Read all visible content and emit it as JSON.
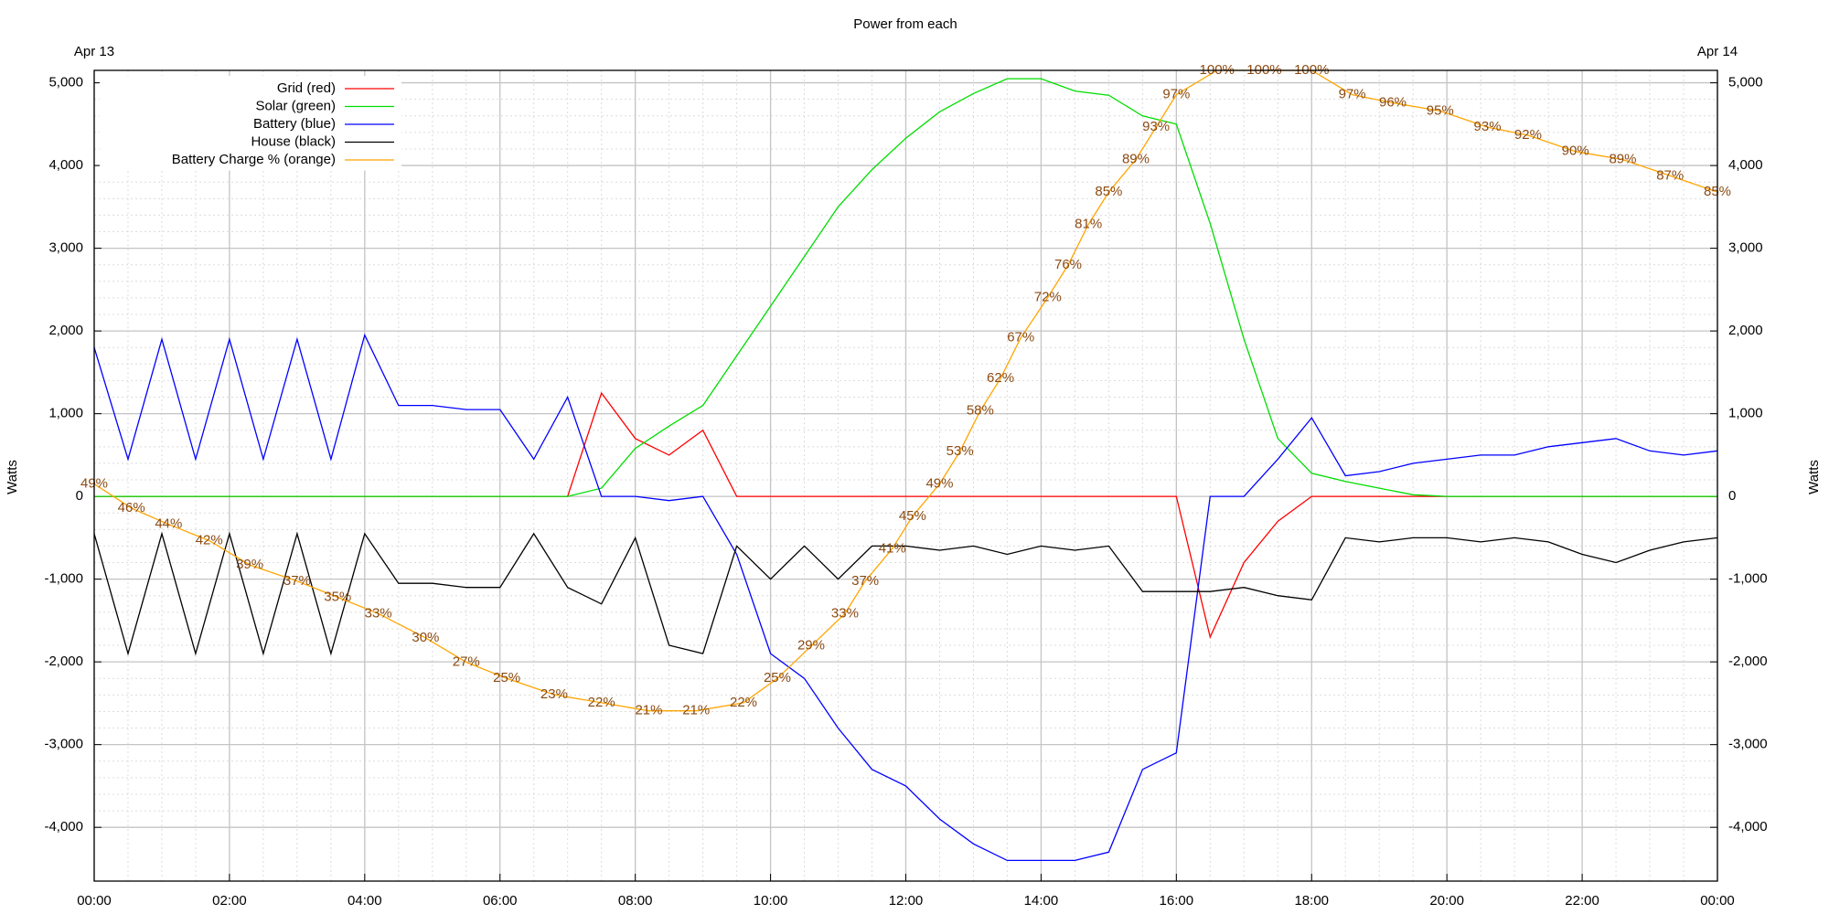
{
  "chart_data": {
    "type": "line",
    "title": "Power from each",
    "start_date": "Apr 13",
    "end_date": "Apr 14",
    "ylabel": "Watts",
    "ylabel_right": "Watts",
    "grid": true,
    "legend": "upper left",
    "xlim": [
      0,
      24
    ],
    "xticks": [
      {
        "value": 0,
        "label": "00:00"
      },
      {
        "value": 2,
        "label": "02:00"
      },
      {
        "value": 4,
        "label": "04:00"
      },
      {
        "value": 6,
        "label": "06:00"
      },
      {
        "value": 8,
        "label": "08:00"
      },
      {
        "value": 10,
        "label": "10:00"
      },
      {
        "value": 12,
        "label": "12:00"
      },
      {
        "value": 14,
        "label": "14:00"
      },
      {
        "value": 16,
        "label": "16:00"
      },
      {
        "value": 18,
        "label": "18:00"
      },
      {
        "value": 20,
        "label": "20:00"
      },
      {
        "value": 22,
        "label": "22:00"
      },
      {
        "value": 24,
        "label": "00:00"
      }
    ],
    "ylim": [
      -4650,
      5150
    ],
    "yticks": [
      {
        "value": 5000,
        "label": "5,000"
      },
      {
        "value": 4000,
        "label": "4,000"
      },
      {
        "value": 3000,
        "label": "3,000"
      },
      {
        "value": 2000,
        "label": "2,000"
      },
      {
        "value": 1000,
        "label": "1,000"
      },
      0,
      {
        "value": -1000,
        "label": "-1,000"
      },
      {
        "value": -2000,
        "label": "-2,000"
      },
      {
        "value": -3000,
        "label": "-3,000"
      },
      {
        "value": -4000,
        "label": "-4,000"
      }
    ],
    "y2lim": [
      0,
      100
    ],
    "x": [
      0,
      0.5,
      1,
      1.5,
      2,
      2.5,
      3,
      3.5,
      4,
      4.5,
      5,
      5.5,
      6,
      6.5,
      7,
      7.5,
      8,
      8.5,
      9,
      9.5,
      10,
      10.5,
      11,
      11.5,
      12,
      12.5,
      13,
      13.5,
      14,
      14.5,
      15,
      15.5,
      16,
      16.5,
      17,
      17.5,
      18,
      18.5,
      19,
      19.5,
      20,
      20.5,
      21,
      21.5,
      22,
      22.5,
      23,
      23.5,
      24
    ],
    "series": [
      {
        "name": "Grid (red)",
        "color": "#ff0000",
        "values": [
          0,
          0,
          0,
          0,
          0,
          0,
          0,
          0,
          0,
          0,
          0,
          0,
          0,
          0,
          0,
          1250,
          700,
          500,
          800,
          0,
          0,
          0,
          0,
          0,
          0,
          0,
          0,
          0,
          0,
          0,
          0,
          0,
          0,
          -1700,
          -800,
          -300,
          0,
          0,
          0,
          0,
          0,
          0,
          0,
          0,
          0,
          0,
          0,
          0,
          0
        ]
      },
      {
        "name": "Solar (green)",
        "color": "#00dd00",
        "values": [
          0,
          0,
          0,
          0,
          0,
          0,
          0,
          0,
          0,
          0,
          0,
          0,
          0,
          0,
          0,
          100,
          580,
          850,
          1100,
          1700,
          2300,
          2900,
          3500,
          3950,
          4330,
          4650,
          4870,
          5050,
          5050,
          4900,
          4850,
          4600,
          4500,
          3300,
          1900,
          700,
          280,
          180,
          100,
          20,
          0,
          0,
          0,
          0,
          0,
          0,
          0,
          0,
          0
        ]
      },
      {
        "name": "Battery (blue)",
        "color": "#0000ff",
        "values": [
          1800,
          450,
          1900,
          450,
          1900,
          450,
          1900,
          450,
          1950,
          1100,
          1100,
          1050,
          1050,
          450,
          1200,
          0,
          0,
          -50,
          0,
          -700,
          -1900,
          -2200,
          -2800,
          -3300,
          -3500,
          -3900,
          -4200,
          -4400,
          -4400,
          -4400,
          -4300,
          -3300,
          -3100,
          0,
          0,
          450,
          950,
          250,
          300,
          400,
          450,
          500,
          500,
          600,
          650,
          700,
          550,
          500,
          550
        ]
      },
      {
        "name": "House (black)",
        "color": "#000000",
        "values": [
          -450,
          -1900,
          -450,
          -1900,
          -450,
          -1900,
          -450,
          -1900,
          -450,
          -1050,
          -1050,
          -1100,
          -1100,
          -450,
          -1100,
          -1300,
          -500,
          -1800,
          -1900,
          -600,
          -1000,
          -600,
          -1000,
          -600,
          -600,
          -650,
          -600,
          -700,
          -600,
          -650,
          -600,
          -1150,
          -1150,
          -1150,
          -1100,
          -1200,
          -1250,
          -500,
          -550,
          -500,
          -500,
          -550,
          -500,
          -550,
          -700,
          -800,
          -650,
          -550,
          -500
        ]
      },
      {
        "name": "Battery Charge % (orange)",
        "color": "#ffa500",
        "axis": "y2",
        "label_color": "#8b4a12",
        "x": [
          0,
          0.55,
          1.1,
          1.7,
          2.3,
          3.0,
          3.6,
          4.2,
          4.9,
          5.5,
          6.1,
          6.8,
          7.5,
          8.2,
          8.9,
          9.6,
          10.1,
          10.6,
          11.1,
          11.4,
          11.8,
          12.1,
          12.5,
          12.8,
          13.1,
          13.4,
          13.7,
          14.1,
          14.4,
          14.7,
          15.0,
          15.4,
          15.7,
          16.0,
          16.6,
          17.3,
          18.0,
          18.6,
          19.2,
          19.9,
          20.6,
          21.2,
          21.9,
          22.6,
          23.3,
          24
        ],
        "values": [
          49,
          46,
          44,
          42,
          39,
          37,
          35,
          33,
          30,
          27,
          25,
          23,
          22,
          21,
          21,
          22,
          25,
          29,
          33,
          37,
          41,
          45,
          49,
          53,
          58,
          62,
          67,
          72,
          76,
          81,
          85,
          89,
          93,
          97,
          100,
          100,
          100,
          97,
          96,
          95,
          93,
          92,
          90,
          89,
          87,
          85
        ],
        "value_labels": [
          "49%",
          "46%",
          "44%",
          "42%",
          "39%",
          "37%",
          "35%",
          "33%",
          "30%",
          "27%",
          "25%",
          "23%",
          "22%",
          "21%",
          "21%",
          "22%",
          "25%",
          "29%",
          "33%",
          "37%",
          "41%",
          "45%",
          "49%",
          "53%",
          "58%",
          "62%",
          "67%",
          "72%",
          "76%",
          "81%",
          "85%",
          "89%",
          "93%",
          "97%",
          "100%",
          "100%",
          "100%",
          "97%",
          "96%",
          "95%",
          "93%",
          "92%",
          "90%",
          "89%",
          "87%",
          "85%"
        ]
      }
    ]
  }
}
